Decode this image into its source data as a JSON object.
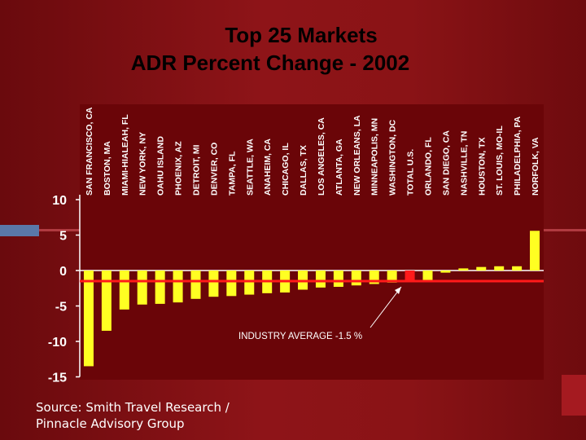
{
  "header": {
    "title_line1": "Top 25 Markets",
    "title_line2": "ADR Percent Change - 2002"
  },
  "source": {
    "line1": "Source: Smith Travel Research /",
    "line2": "Pinnacle Advisory Group"
  },
  "chart_data": {
    "type": "bar",
    "categories": [
      "SAN FRANCISCO, CA",
      "BOSTON, MA",
      "MIAMI-HIALEAH, FL",
      "NEW YORK, NY",
      "OAHU ISLAND",
      "PHOENIX, AZ",
      "DETROIT, MI",
      "DENVER, CO",
      "TAMPA, FL",
      "SEATTLE, WA",
      "ANAHEIM, CA",
      "CHICAGO, IL",
      "DALLAS, TX",
      "LOS ANGELES, CA",
      "ATLANTA, GA",
      "NEW ORLEANS, LA",
      "MINNEAPOLIS, MN",
      "WASHINGTON, DC",
      "TOTAL U.S.",
      "ORLANDO, FL",
      "SAN DIEGO, CA",
      "NASHVILLE, TN",
      "HOUSTON, TX",
      "ST. LOUIS, MO-IL",
      "PHILADELPHIA, PA",
      "NORFOLK, VA"
    ],
    "values": [
      -13.5,
      -8.5,
      -5.5,
      -4.8,
      -4.7,
      -4.5,
      -4.0,
      -3.7,
      -3.6,
      -3.4,
      -3.2,
      -3.1,
      -2.7,
      -2.4,
      -2.3,
      -2.1,
      -1.9,
      -1.7,
      -1.5,
      -1.4,
      -0.3,
      0.3,
      0.5,
      0.6,
      0.6,
      5.6
    ],
    "highlight_category": "TOTAL U.S.",
    "yticks": [
      10,
      5,
      0,
      -5,
      -10,
      -15
    ],
    "ylim": [
      -15,
      10
    ],
    "reference_line": {
      "value": -1.5,
      "label": "INDUSTRY AVERAGE  -1.5 %"
    },
    "colors": {
      "bar": "#ffff22",
      "highlight": "#ff1a1a",
      "reference": "#ff1a1a",
      "axis": "#ffffff"
    }
  }
}
